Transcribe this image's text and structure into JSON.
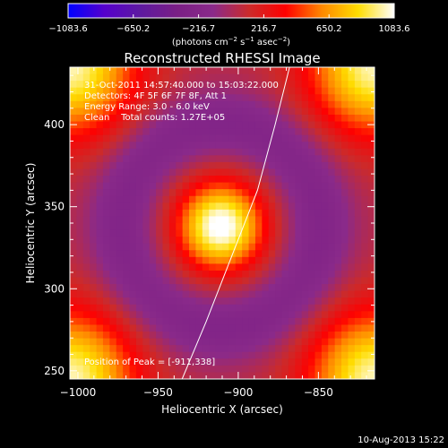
{
  "chart_data": {
    "type": "heatmap",
    "title": "Reconstructed RHESSI Image",
    "xlabel": "Heliocentric X (arcsec)",
    "ylabel": "Heliocentric Y (arcsec)",
    "xlim": [
      -1005,
      -815
    ],
    "ylim": [
      245,
      435
    ],
    "x_ticks": [
      -1000,
      -950,
      -900,
      -850
    ],
    "y_ticks": [
      250,
      300,
      350,
      400
    ],
    "x_tick_labels": [
      "−1000",
      "−950",
      "−900",
      "−850"
    ],
    "y_tick_labels": [
      "250",
      "300",
      "350",
      "400"
    ],
    "colorbar": {
      "range": [
        -1083.6,
        1083.6
      ],
      "ticks": [
        -1083.6,
        -650.2,
        -216.7,
        216.7,
        650.2,
        1083.6
      ],
      "tick_labels": [
        "−1083.6",
        "−650.2",
        "−216.7",
        "216.7",
        "650.2",
        "1083.6"
      ],
      "label_main": "(photons cm",
      "label_exp1": "−2",
      "label_mid1": " s",
      "label_exp2": "−1",
      "label_mid2": " asec",
      "label_exp3": "−2",
      "label_end": ")",
      "colormap": [
        "#0000ff",
        "#5500cc",
        "#5e1aa0",
        "#7a1f85",
        "#8a2a8a",
        "#cc2a2a",
        "#ff0000",
        "#ff8800",
        "#ffdd00",
        "#ffffff"
      ]
    },
    "peak": {
      "x": -911,
      "y": 338,
      "amplitude": 1083.6,
      "sigma": 18
    },
    "ring": {
      "amplitude": -300,
      "radius": 62,
      "width": 16
    },
    "background": 60,
    "corner_boost": 950,
    "limb_curve": [
      [
        -935,
        245
      ],
      [
        -920,
        280
      ],
      [
        -900,
        330
      ],
      [
        -888,
        360
      ],
      [
        -877,
        400
      ],
      [
        -868,
        435
      ]
    ],
    "annotations": [
      "31-Oct-2011 14:57:40.000 to 15:03:22.000",
      "Detectors: 4F 5F 6F 7F 8F, Att 1",
      "Energy Range: 3.0 - 6.0 keV",
      "Clean    Total counts: 1.27E+05"
    ],
    "peak_label": "Position of Peak = [-911,338]"
  },
  "footer_timestamp": "10-Aug-2013 15:22"
}
